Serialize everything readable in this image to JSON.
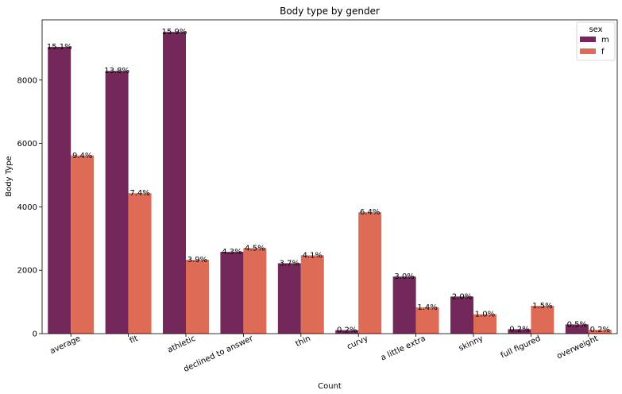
{
  "chart_data": {
    "type": "bar",
    "title": "Body type by gender",
    "xlabel": "Count",
    "ylabel": "Body Type",
    "ylim": [
      0,
      9900
    ],
    "yticks": [
      0,
      2000,
      4000,
      6000,
      8000
    ],
    "categories": [
      "average",
      "fit",
      "athletic",
      "declined to answer",
      "thin",
      "curvy",
      "a little extra",
      "skinny",
      "full figured",
      "overweight"
    ],
    "legend": {
      "title": "sex",
      "position": "top-right"
    },
    "grid": false,
    "series": [
      {
        "name": "m",
        "color": "#74285a",
        "values": [
          9050,
          8290,
          9520,
          2580,
          2220,
          110,
          1800,
          1170,
          140,
          290
        ],
        "labels": [
          "15.1%",
          "13.8%",
          "15.9%",
          "4.3%",
          "3.7%",
          "0.2%",
          "3.0%",
          "2.0%",
          "0.2%",
          "0.5%"
        ]
      },
      {
        "name": "f",
        "color": "#dd6b56",
        "values": [
          5620,
          4430,
          2330,
          2700,
          2470,
          3830,
          830,
          610,
          880,
          120
        ],
        "labels": [
          "9.4%",
          "7.4%",
          "3.9%",
          "4.5%",
          "4.1%",
          "6.4%",
          "1.4%",
          "1.0%",
          "1.5%",
          "0.2%"
        ]
      }
    ]
  }
}
